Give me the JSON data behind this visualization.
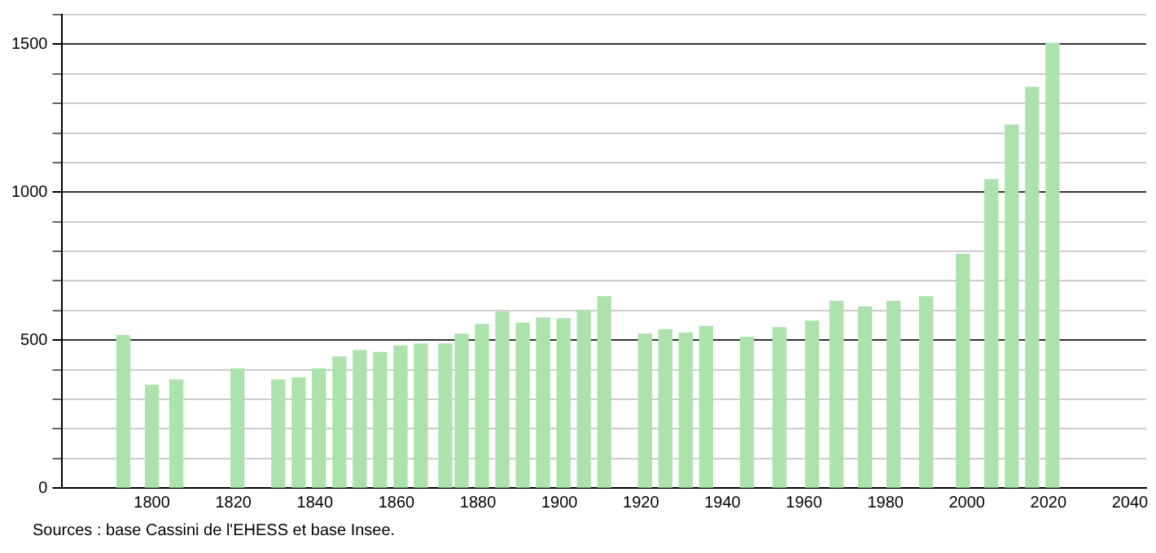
{
  "chart_data": {
    "type": "bar",
    "x": [
      1793,
      1800,
      1806,
      1821,
      1831,
      1836,
      1841,
      1846,
      1851,
      1856,
      1861,
      1866,
      1872,
      1876,
      1881,
      1886,
      1891,
      1896,
      1901,
      1906,
      1911,
      1921,
      1926,
      1931,
      1936,
      1946,
      1954,
      1962,
      1968,
      1975,
      1982,
      1990,
      1999,
      2006,
      2011,
      2016,
      2021
    ],
    "values": [
      515,
      347,
      365,
      402,
      365,
      372,
      402,
      443,
      465,
      458,
      480,
      487,
      487,
      520,
      553,
      594,
      557,
      575,
      572,
      601,
      646,
      520,
      535,
      524,
      546,
      509,
      542,
      564,
      631,
      612,
      631,
      646,
      790,
      1042,
      1227,
      1354,
      1503
    ],
    "color": "#ace3ac",
    "xlim": [
      1778,
      2044
    ],
    "xticks": [
      1800,
      1820,
      1840,
      1860,
      1880,
      1900,
      1920,
      1940,
      1960,
      1980,
      2000,
      2020,
      2040
    ],
    "ylim": [
      0,
      1600
    ],
    "yticks": [
      0,
      {
        "value": 100,
        "label": null
      },
      {
        "value": 200,
        "label": null
      },
      {
        "value": 300,
        "label": null
      },
      {
        "value": 400,
        "label": null
      },
      500,
      {
        "value": 600,
        "label": null
      },
      {
        "value": 700,
        "label": null
      },
      {
        "value": 800,
        "label": null
      },
      {
        "value": 900,
        "label": null
      },
      1000,
      {
        "value": 1100,
        "label": null
      },
      {
        "value": 1200,
        "label": null
      },
      {
        "value": 1300,
        "label": null
      },
      {
        "value": 1400,
        "label": null
      },
      1500,
      {
        "value": 1600,
        "label": null
      }
    ],
    "grid": "y",
    "legend": false,
    "annotations": [
      "Sources : base Cassini de l'EHESS et base Insee."
    ]
  }
}
